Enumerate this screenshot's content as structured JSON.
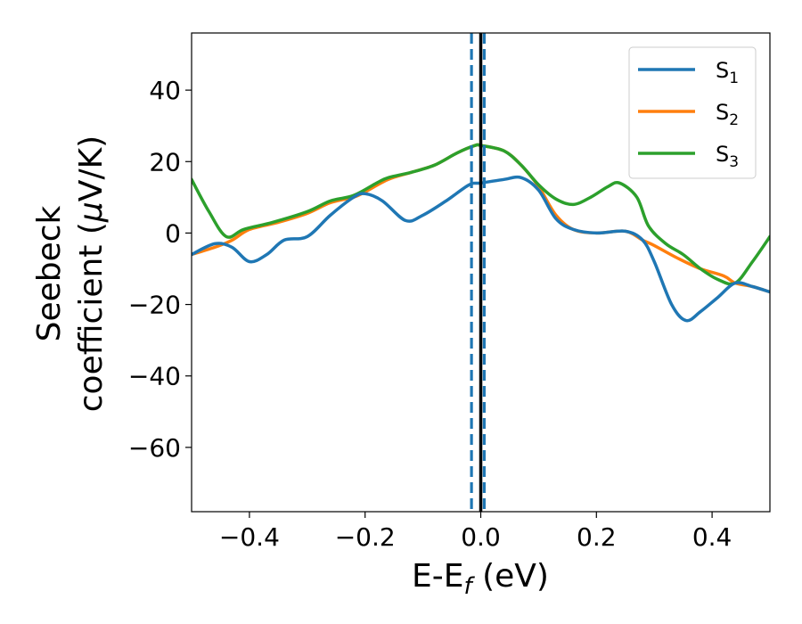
{
  "chart_data": {
    "type": "line",
    "xlabel": "E-E",
    "xlabel_sub": "f",
    "xlabel_unit": " (eV)",
    "ylabel_line1": "Seebeck",
    "ylabel_line2_prefix": "coefficient  (",
    "ylabel_mu": "μ",
    "ylabel_line2_suffix": "V/K)",
    "xlim": [
      -0.5,
      0.5
    ],
    "ylim": [
      -78,
      56
    ],
    "xticks": [
      -0.4,
      -0.2,
      0.0,
      0.2,
      0.4
    ],
    "xtick_labels": [
      "−0.4",
      "−0.2",
      "0.0",
      "0.2",
      "0.4"
    ],
    "yticks": [
      40,
      20,
      0,
      -20,
      -40,
      -60
    ],
    "ytick_labels": [
      "40",
      "20",
      "0",
      "−20",
      "−40",
      "−60"
    ],
    "grid": false,
    "legend_position": "top-right",
    "vlines": [
      {
        "x": 0.0,
        "color": "#000000",
        "style": "solid"
      },
      {
        "x": -0.016,
        "color": "#1f77b4",
        "style": "dashed"
      },
      {
        "x": 0.006,
        "color": "#1f77b4",
        "style": "dashed"
      }
    ],
    "series": [
      {
        "name": "S",
        "sub": "1",
        "color": "#1f77b4",
        "x": [
          -0.5,
          -0.46,
          -0.43,
          -0.4,
          -0.37,
          -0.34,
          -0.3,
          -0.26,
          -0.22,
          -0.2,
          -0.17,
          -0.13,
          -0.1,
          -0.06,
          -0.02,
          0.0,
          0.04,
          0.07,
          0.1,
          0.13,
          0.16,
          0.2,
          0.25,
          0.28,
          0.3,
          0.33,
          0.355,
          0.38,
          0.41,
          0.44,
          0.47,
          0.5
        ],
        "y": [
          -6,
          -3,
          -4,
          -8,
          -6,
          -2,
          -1,
          5,
          10,
          11,
          9,
          3.5,
          5,
          9,
          13.5,
          14,
          15,
          15.5,
          12,
          4,
          1,
          0,
          0.5,
          -2,
          -8,
          -20,
          -24.5,
          -22,
          -18,
          -14,
          -15,
          -16.5
        ]
      },
      {
        "name": "S",
        "sub": "2",
        "color": "#ff7f0e",
        "x": [
          -0.5,
          -0.46,
          -0.43,
          -0.4,
          -0.35,
          -0.3,
          -0.26,
          -0.22,
          -0.2,
          -0.16,
          -0.12,
          -0.08,
          -0.04,
          -0.01,
          0.0,
          0.04,
          0.07,
          0.1,
          0.13,
          0.16,
          0.2,
          0.25,
          0.28,
          0.3,
          0.34,
          0.38,
          0.42,
          0.44,
          0.47,
          0.5
        ],
        "y": [
          -6,
          -4,
          -2,
          1,
          3,
          5.5,
          8.5,
          10,
          11.5,
          15,
          17,
          19,
          22.5,
          24.5,
          24.5,
          23,
          19,
          13,
          5,
          1,
          0,
          0.5,
          -2,
          -3.5,
          -7,
          -10,
          -12,
          -14,
          -15,
          -16.5
        ]
      },
      {
        "name": "S",
        "sub": "3",
        "color": "#2ca02c",
        "x": [
          -0.5,
          -0.47,
          -0.44,
          -0.41,
          -0.36,
          -0.3,
          -0.26,
          -0.22,
          -0.18,
          -0.16,
          -0.12,
          -0.08,
          -0.04,
          -0.01,
          0.0,
          0.04,
          0.07,
          0.1,
          0.13,
          0.16,
          0.19,
          0.22,
          0.24,
          0.27,
          0.29,
          0.32,
          0.35,
          0.38,
          0.41,
          0.44,
          0.47,
          0.5
        ],
        "y": [
          15,
          6,
          -1,
          1,
          3,
          6,
          9,
          10.5,
          14,
          15.5,
          17,
          19,
          22.5,
          24.5,
          24.5,
          23,
          19,
          13.5,
          9.5,
          8,
          10,
          13,
          14,
          10,
          2,
          -3,
          -6,
          -10,
          -13,
          -14,
          -8,
          -1
        ]
      }
    ]
  }
}
